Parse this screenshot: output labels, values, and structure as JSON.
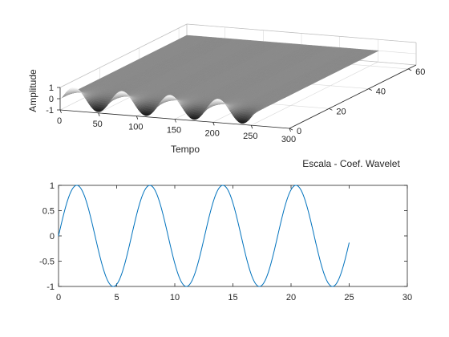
{
  "figure": {
    "colors": {
      "axis": "#262626",
      "grid": "#d9d9d9",
      "line": "#0072bd",
      "surface": "#808080"
    }
  },
  "chart_data": [
    {
      "type": "surface",
      "xlabel": "Tempo",
      "ylabel": "Escala - Coef. Wavelet",
      "zlabel": "Amplitude",
      "xlim": [
        0,
        300
      ],
      "ylim": [
        0,
        64
      ],
      "zlim": [
        -1,
        1
      ],
      "xticks": [
        0,
        50,
        100,
        150,
        200,
        250,
        300
      ],
      "yticks": [
        0,
        20,
        40,
        60
      ],
      "zticks": [
        -1,
        0,
        1
      ],
      "grid": true,
      "surface_model": {
        "description_values": "z = sin(0.1*x) * exp(-y/2.5); ripples of amplitude 1 at scale 0 decay to a flat plane",
        "x_range": [
          0,
          251
        ],
        "y_range": [
          1,
          64
        ],
        "oscillation_period": 62.8
      }
    },
    {
      "type": "line",
      "xlabel": "",
      "ylabel": "",
      "xlim": [
        0,
        30
      ],
      "ylim": [
        -1,
        1
      ],
      "xticks": [
        0,
        5,
        10,
        15,
        20,
        25,
        30
      ],
      "yticks": [
        -1,
        -0.5,
        0,
        0.5,
        1
      ],
      "series": [
        {
          "function": "sin",
          "x_start": 0,
          "x_end": 25,
          "frequency": 1,
          "amplitude": 1
        }
      ]
    }
  ]
}
